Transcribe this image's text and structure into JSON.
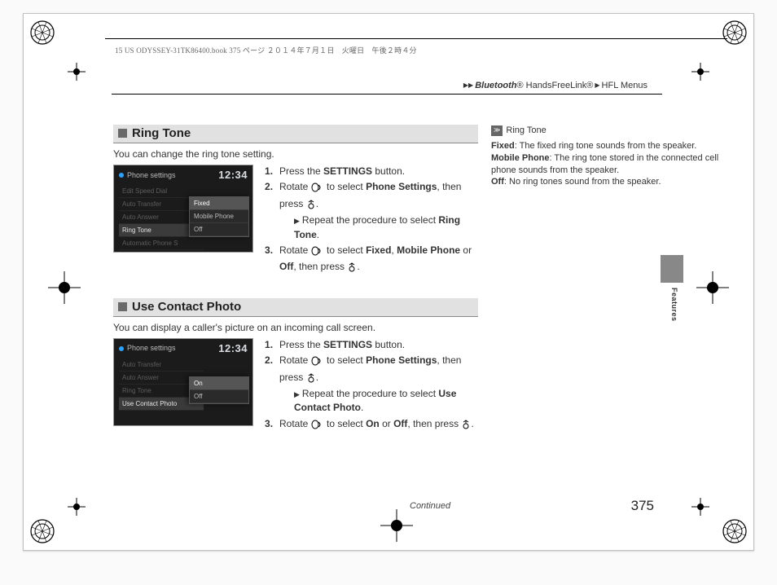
{
  "meta": {
    "bookline": "15 US ODYSSEY-31TK86400.book  375 ページ  ２０１４年７月１日　火曜日　午後２時４分"
  },
  "breadcrumb": {
    "a": "Bluetooth",
    "a_sup": "®",
    "b": " HandsFreeLink®",
    "c": "HFL Menus"
  },
  "tab_label": "Features",
  "s1": {
    "title": "Ring Tone",
    "intro": "You can change the ring tone setting.",
    "screen": {
      "title": "Phone settings",
      "clock": "12:34",
      "menu": [
        "Edit Speed Dial",
        "Auto Transfer",
        "Auto Answer",
        "Ring Tone",
        "Automatic Phone S"
      ],
      "menu_sel_index": 3,
      "popup": [
        "Fixed",
        "Mobile Phone",
        "Off"
      ],
      "popup_sel_index": 0
    },
    "steps": {
      "s1a": "Press the ",
      "s1b": "SETTINGS",
      "s1c": " button.",
      "s2a": "Rotate ",
      "s2b": " to select ",
      "s2c": "Phone Settings",
      "s2d": ", then press ",
      "s2e": ".",
      "s2_sub_a": "Repeat the procedure to select ",
      "s2_sub_b": "Ring Tone",
      "s2_sub_c": ".",
      "s3a": "Rotate ",
      "s3b": " to select ",
      "s3c": "Fixed",
      "s3d": ", ",
      "s3e": "Mobile Phone",
      "s3f": " or ",
      "s3g": "Off",
      "s3h": ", then press ",
      "s3i": "."
    }
  },
  "s2": {
    "title": "Use Contact Photo",
    "intro": "You can display a caller's picture on an incoming call screen.",
    "screen": {
      "title": "Phone settings",
      "clock": "12:34",
      "menu": [
        "Auto Transfer",
        "Auto Answer",
        "Ring Tone",
        "Use Contact Photo"
      ],
      "menu_sel_index": 3,
      "popup": [
        "On",
        "Off"
      ],
      "popup_sel_index": 0
    },
    "steps": {
      "s1a": "Press the ",
      "s1b": "SETTINGS",
      "s1c": " button.",
      "s2a": "Rotate ",
      "s2b": " to select ",
      "s2c": "Phone Settings",
      "s2d": ", then press ",
      "s2e": ".",
      "s2_sub_a": "Repeat the procedure to select ",
      "s2_sub_b": "Use Contact Photo",
      "s2_sub_c": ".",
      "s3a": "Rotate ",
      "s3b": " to select ",
      "s3c": "On",
      "s3d": " or ",
      "s3e": "Off",
      "s3f": ", then press ",
      "s3g": "."
    }
  },
  "side": {
    "head": "Ring Tone",
    "l1a": "Fixed",
    "l1b": ": The fixed ring tone sounds from the speaker.",
    "l2a": "Mobile Phone",
    "l2b": ": The ring tone stored in the connected cell phone sounds from the speaker.",
    "l3a": "Off",
    "l3b": ": No ring tones sound from the speaker."
  },
  "footer": {
    "continued": "Continued",
    "page": "375"
  }
}
